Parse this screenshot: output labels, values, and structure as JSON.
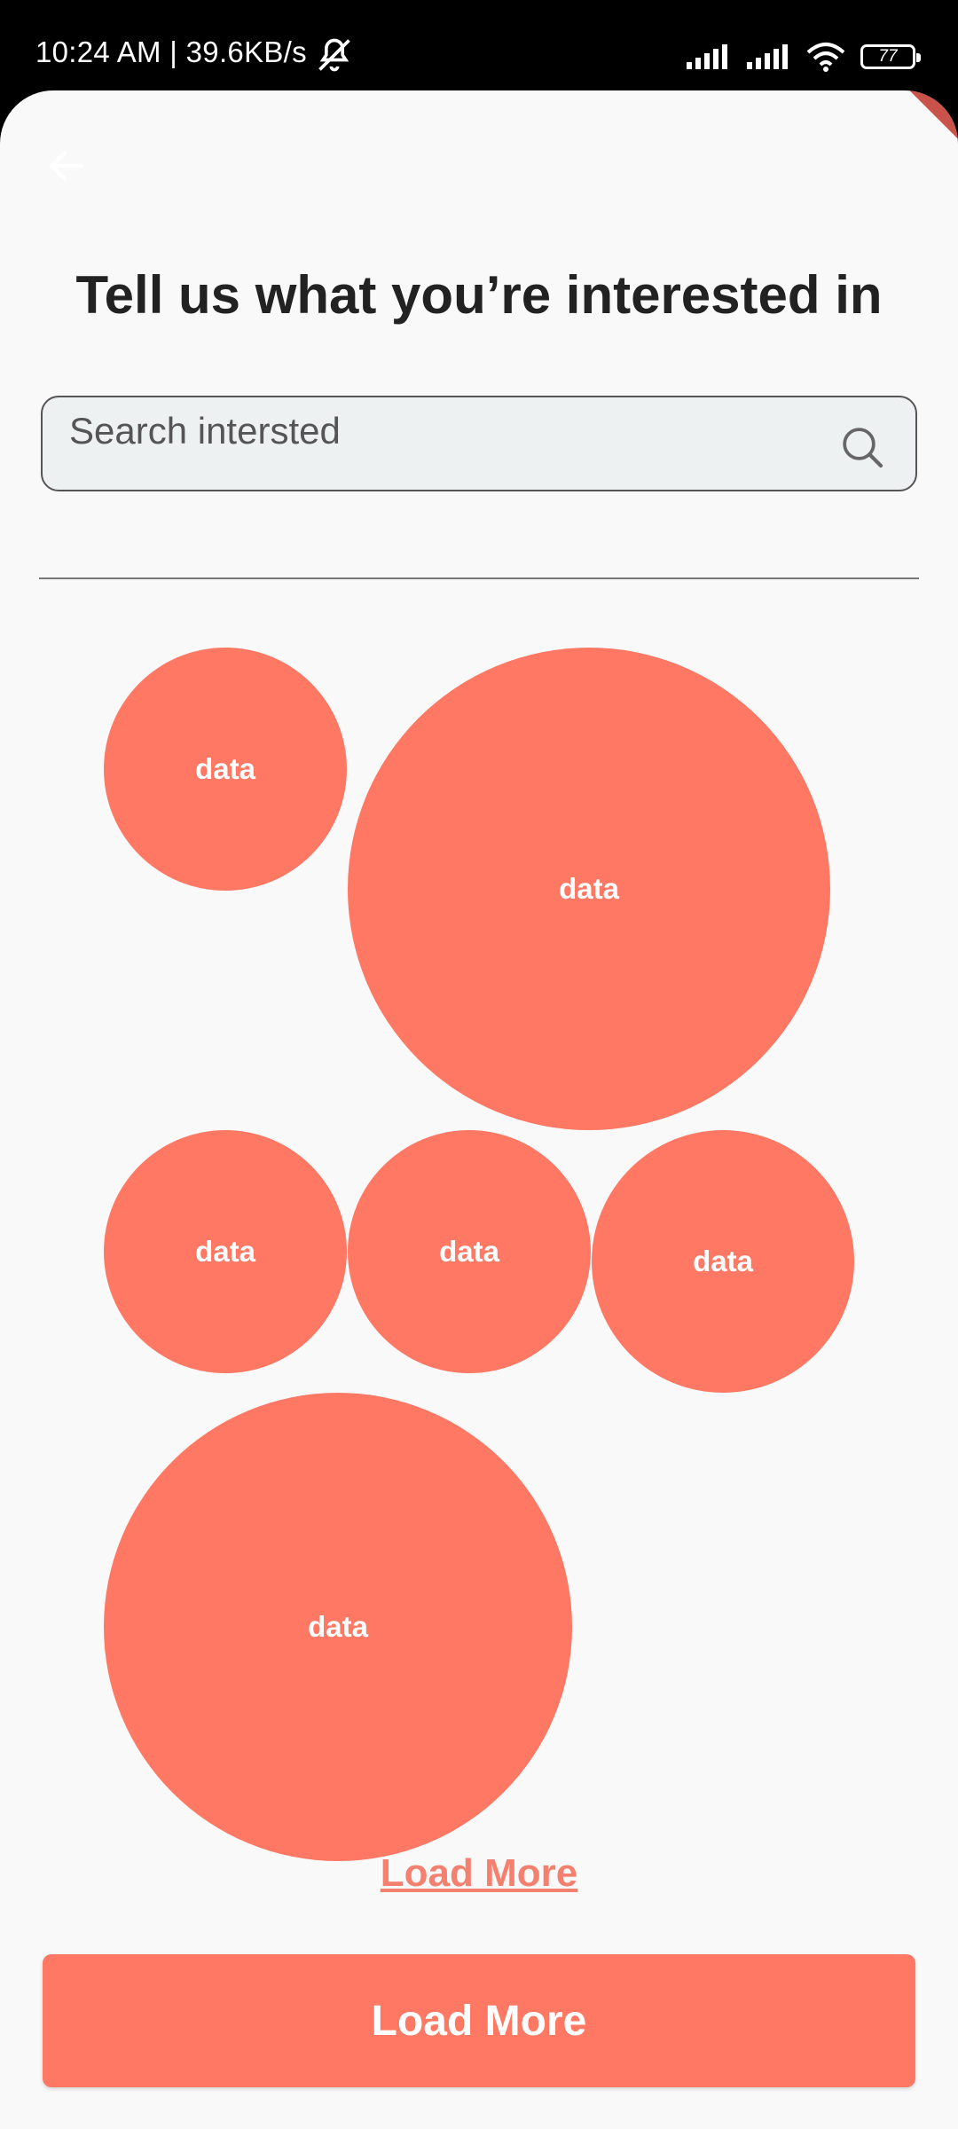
{
  "status_bar": {
    "time_speed": "10:24 AM | 39.6KB/s",
    "battery": "77",
    "icons": [
      "mute-icon",
      "signal-icon",
      "signal-icon",
      "wifi-icon",
      "battery-icon"
    ]
  },
  "header": {
    "back_icon": "arrow-left-icon",
    "title": "Tell us what you’re interested in"
  },
  "search": {
    "placeholder": "Search intersted",
    "value": "",
    "icon": "search-icon"
  },
  "bubbles": [
    {
      "label": "data"
    },
    {
      "label": "data"
    },
    {
      "label": "data"
    },
    {
      "label": "data"
    },
    {
      "label": "data"
    },
    {
      "label": "data"
    }
  ],
  "footer": {
    "load_more_link": "Load More",
    "load_more_button": "Load More"
  },
  "colors": {
    "accent": "#fe7864",
    "link": "#f4806f",
    "background": "#f9f9f9",
    "title": "#222222"
  }
}
